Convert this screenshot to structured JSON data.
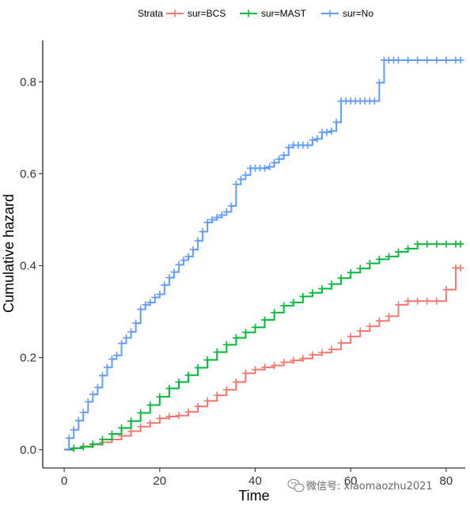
{
  "chart_data": {
    "type": "line",
    "title": "",
    "xlabel": "Time",
    "ylabel": "Cumulative hazard",
    "xlim": [
      -4.5,
      84
    ],
    "ylim": [
      -0.04,
      0.89
    ],
    "x_ticks": [
      0,
      20,
      40,
      60,
      80
    ],
    "x_tick_labels": [
      "0",
      "20",
      "40",
      "60",
      "80"
    ],
    "y_ticks": [
      0.0,
      0.2,
      0.4,
      0.6,
      0.8
    ],
    "y_tick_labels": [
      "0.0",
      "0.2",
      "0.4",
      "0.6",
      "0.8"
    ],
    "grid": false,
    "step": true,
    "censor_marks": true,
    "legend": {
      "title": "Strata",
      "position": "top"
    },
    "series": [
      {
        "name": "sur=BCS",
        "color": "#F8766D",
        "x": [
          0,
          2,
          4,
          6,
          8,
          10,
          12,
          14,
          16,
          18,
          20,
          22,
          24,
          26,
          28,
          30,
          32,
          34,
          36,
          38,
          40,
          42,
          44,
          46,
          48,
          50,
          52,
          54,
          56,
          58,
          60,
          62,
          64,
          66,
          68,
          70,
          72,
          74,
          76,
          78,
          80,
          82,
          83
        ],
        "y": [
          0.0,
          0.003,
          0.007,
          0.011,
          0.016,
          0.022,
          0.03,
          0.04,
          0.05,
          0.058,
          0.068,
          0.072,
          0.074,
          0.082,
          0.094,
          0.106,
          0.118,
          0.13,
          0.147,
          0.166,
          0.174,
          0.179,
          0.183,
          0.19,
          0.194,
          0.198,
          0.206,
          0.211,
          0.218,
          0.232,
          0.246,
          0.258,
          0.268,
          0.28,
          0.29,
          0.315,
          0.323,
          0.323,
          0.323,
          0.323,
          0.348,
          0.395,
          0.395
        ]
      },
      {
        "name": "sur=MAST",
        "color": "#00BA38",
        "x": [
          0,
          2,
          4,
          6,
          8,
          10,
          12,
          14,
          16,
          18,
          20,
          22,
          24,
          26,
          28,
          30,
          32,
          34,
          36,
          38,
          40,
          42,
          44,
          46,
          48,
          50,
          52,
          54,
          56,
          58,
          60,
          62,
          64,
          66,
          68,
          70,
          72,
          74,
          76,
          78,
          80,
          82,
          83
        ],
        "y": [
          0.0,
          0.003,
          0.006,
          0.012,
          0.022,
          0.034,
          0.047,
          0.062,
          0.08,
          0.097,
          0.115,
          0.133,
          0.147,
          0.162,
          0.178,
          0.195,
          0.212,
          0.228,
          0.243,
          0.255,
          0.266,
          0.282,
          0.298,
          0.313,
          0.32,
          0.333,
          0.341,
          0.35,
          0.36,
          0.373,
          0.385,
          0.394,
          0.405,
          0.414,
          0.42,
          0.43,
          0.437,
          0.447,
          0.447,
          0.447,
          0.447,
          0.447,
          0.447
        ]
      },
      {
        "name": "sur=No",
        "color": "#619CFF",
        "x": [
          0,
          1,
          2,
          3,
          4,
          5,
          6,
          7,
          8,
          9,
          10,
          11,
          12,
          13,
          14,
          15,
          16,
          17,
          18,
          19,
          20,
          21,
          22,
          23,
          24,
          25,
          26,
          27,
          28,
          29,
          30,
          31,
          32,
          33,
          34,
          35,
          36,
          37,
          38,
          39,
          40,
          41,
          42,
          43,
          44,
          45,
          46,
          47,
          48,
          49,
          50,
          51,
          52,
          53,
          54,
          55,
          56,
          57,
          58,
          59,
          60,
          61,
          62,
          63,
          64,
          65,
          66,
          67,
          68,
          69,
          70,
          72,
          74,
          76,
          78,
          80,
          82,
          83
        ],
        "y": [
          0.0,
          0.025,
          0.043,
          0.063,
          0.081,
          0.104,
          0.12,
          0.135,
          0.161,
          0.179,
          0.197,
          0.205,
          0.231,
          0.243,
          0.256,
          0.275,
          0.305,
          0.315,
          0.32,
          0.331,
          0.338,
          0.358,
          0.374,
          0.386,
          0.402,
          0.412,
          0.42,
          0.435,
          0.454,
          0.474,
          0.494,
          0.5,
          0.505,
          0.51,
          0.517,
          0.53,
          0.577,
          0.588,
          0.597,
          0.612,
          0.612,
          0.612,
          0.612,
          0.615,
          0.624,
          0.632,
          0.64,
          0.657,
          0.662,
          0.662,
          0.662,
          0.662,
          0.673,
          0.676,
          0.69,
          0.69,
          0.693,
          0.712,
          0.758,
          0.758,
          0.758,
          0.758,
          0.758,
          0.758,
          0.758,
          0.758,
          0.798,
          0.847,
          0.847,
          0.847,
          0.847,
          0.847,
          0.847,
          0.847,
          0.847,
          0.847,
          0.847,
          0.847
        ]
      }
    ]
  },
  "watermark": {
    "text": "微信号: xiaomaozhu2021",
    "icon": "wechat-icon"
  }
}
